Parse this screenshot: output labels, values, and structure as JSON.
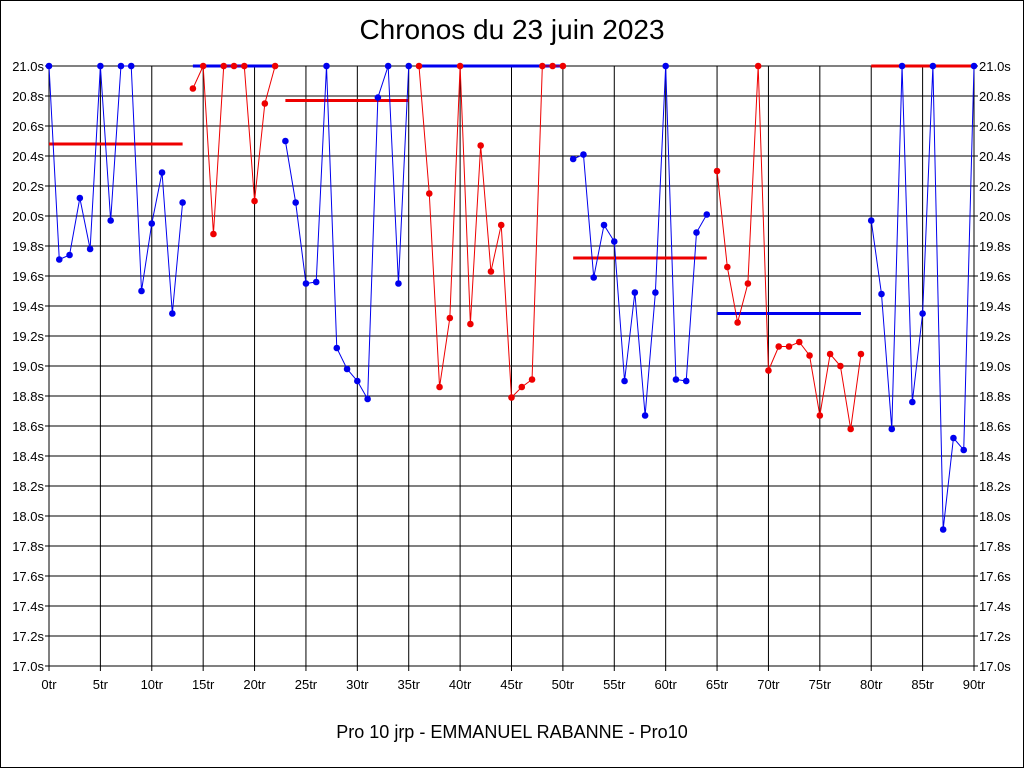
{
  "header": {
    "title": "Chronos du 23 juin 2023"
  },
  "footer": {
    "subtitle": "Pro 10 jrp - EMMANUEL RABANNE - Pro10"
  },
  "colors": {
    "blue": "#0000ee",
    "red": "#ee0000",
    "grid": "#000000"
  },
  "chart_data": {
    "type": "line",
    "title": "Chronos du 23 juin 2023",
    "xlabel": "",
    "ylabel": "",
    "xlim": [
      0,
      90
    ],
    "ylim": [
      17.0,
      21.0
    ],
    "grid": true,
    "x_tick_labels": [
      "0tr",
      "5tr",
      "10tr",
      "15tr",
      "20tr",
      "25tr",
      "30tr",
      "35tr",
      "40tr",
      "45tr",
      "50tr",
      "55tr",
      "60tr",
      "65tr",
      "70tr",
      "75tr",
      "80tr",
      "85tr",
      "90tr"
    ],
    "y_tick_labels": [
      "17.0s",
      "17.2s",
      "17.4s",
      "17.6s",
      "17.8s",
      "18.0s",
      "18.2s",
      "18.4s",
      "18.6s",
      "18.8s",
      "19.0s",
      "19.2s",
      "19.4s",
      "19.6s",
      "19.8s",
      "20.0s",
      "20.2s",
      "20.4s",
      "20.6s",
      "20.8s",
      "21.0s"
    ],
    "series": [
      {
        "color": "blue",
        "points": [
          [
            0,
            21.0
          ],
          [
            1,
            19.71
          ],
          [
            2,
            19.74
          ],
          [
            3,
            20.12
          ],
          [
            4,
            19.78
          ],
          [
            5,
            21.0
          ],
          [
            6,
            19.97
          ],
          [
            7,
            21.0
          ],
          [
            8,
            21.0
          ],
          [
            9,
            19.5
          ],
          [
            10,
            19.95
          ],
          [
            11,
            20.29
          ],
          [
            12,
            19.35
          ],
          [
            13,
            20.09
          ]
        ]
      },
      {
        "color": "red",
        "points": [
          [
            14,
            20.85
          ],
          [
            15,
            21.0
          ],
          [
            16,
            19.88
          ],
          [
            17,
            21.0
          ],
          [
            18,
            21.0
          ],
          [
            19,
            21.0
          ],
          [
            20,
            20.1
          ],
          [
            21,
            20.75
          ],
          [
            22,
            21.0
          ]
        ]
      },
      {
        "color": "blue",
        "points": [
          [
            23,
            20.5
          ],
          [
            24,
            20.09
          ],
          [
            25,
            19.55
          ],
          [
            26,
            19.56
          ],
          [
            27,
            21.0
          ],
          [
            28,
            19.12
          ],
          [
            29,
            18.98
          ],
          [
            30,
            18.9
          ],
          [
            31,
            18.78
          ],
          [
            32,
            20.79
          ],
          [
            33,
            21.0
          ],
          [
            34,
            19.55
          ],
          [
            35,
            21.0
          ]
        ]
      },
      {
        "color": "red",
        "points": [
          [
            36,
            21.0
          ],
          [
            37,
            20.15
          ],
          [
            38,
            18.86
          ],
          [
            39,
            19.32
          ],
          [
            40,
            21.0
          ],
          [
            41,
            19.28
          ],
          [
            42,
            20.47
          ],
          [
            43,
            19.63
          ],
          [
            44,
            19.94
          ],
          [
            45,
            18.79
          ],
          [
            46,
            18.86
          ],
          [
            47,
            18.91
          ],
          [
            48,
            21.0
          ],
          [
            49,
            21.0
          ],
          [
            50,
            21.0
          ]
        ]
      },
      {
        "color": "blue",
        "points": [
          [
            51,
            20.38
          ],
          [
            52,
            20.41
          ],
          [
            53,
            19.59
          ],
          [
            54,
            19.94
          ],
          [
            55,
            19.83
          ],
          [
            56,
            18.9
          ],
          [
            57,
            19.49
          ],
          [
            58,
            18.67
          ],
          [
            59,
            19.49
          ],
          [
            60,
            21.0
          ],
          [
            61,
            18.91
          ],
          [
            62,
            18.9
          ],
          [
            63,
            19.89
          ],
          [
            64,
            20.01
          ]
        ]
      },
      {
        "color": "red",
        "points": [
          [
            65,
            20.3
          ],
          [
            66,
            19.66
          ],
          [
            67,
            19.29
          ],
          [
            68,
            19.55
          ],
          [
            69,
            21.0
          ],
          [
            70,
            18.97
          ],
          [
            71,
            19.13
          ],
          [
            72,
            19.13
          ],
          [
            73,
            19.16
          ],
          [
            74,
            19.07
          ],
          [
            75,
            18.67
          ],
          [
            76,
            19.08
          ],
          [
            77,
            19.0
          ],
          [
            78,
            18.58
          ],
          [
            79,
            19.08
          ]
        ]
      },
      {
        "color": "blue",
        "points": [
          [
            80,
            19.97
          ],
          [
            81,
            19.48
          ],
          [
            82,
            18.58
          ],
          [
            83,
            21.0
          ],
          [
            84,
            18.76
          ],
          [
            85,
            19.35
          ],
          [
            86,
            21.0
          ],
          [
            87,
            17.91
          ],
          [
            88,
            18.52
          ],
          [
            89,
            18.44
          ],
          [
            90,
            21.0
          ]
        ]
      }
    ],
    "averages": [
      {
        "color": "red",
        "x": [
          0,
          13
        ],
        "y": 20.48
      },
      {
        "color": "blue",
        "x": [
          14,
          22
        ],
        "y": 21.0
      },
      {
        "color": "red",
        "x": [
          23,
          35
        ],
        "y": 20.77
      },
      {
        "color": "blue",
        "x": [
          36,
          50
        ],
        "y": 21.0
      },
      {
        "color": "red",
        "x": [
          51,
          64
        ],
        "y": 19.72
      },
      {
        "color": "blue",
        "x": [
          65,
          79
        ],
        "y": 19.35
      },
      {
        "color": "red",
        "x": [
          80,
          90
        ],
        "y": 21.0
      }
    ]
  }
}
